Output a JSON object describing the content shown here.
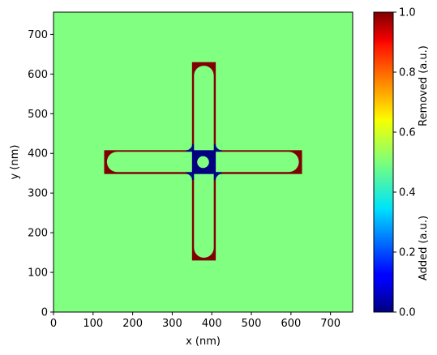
{
  "chart_data": {
    "type": "heatmap",
    "title": "",
    "xlabel": "x (nm)",
    "ylabel": "y (nm)",
    "xlim": [
      0,
      756
    ],
    "ylim": [
      0,
      756
    ],
    "x_ticks": [
      "0",
      "100",
      "200",
      "300",
      "400",
      "500",
      "600",
      "700"
    ],
    "y_ticks": [
      "0",
      "100",
      "200",
      "300",
      "400",
      "500",
      "600",
      "700"
    ],
    "colormap": "jet",
    "background_value": 0.5,
    "colorbar": {
      "range": [
        0.0,
        1.0
      ],
      "ticks": [
        "0.0",
        "0.2",
        "0.4",
        "0.6",
        "0.8",
        "1.0"
      ],
      "label_top": "Removed (a.u.)",
      "label_bottom": "Added (a.u.)"
    },
    "regions": [
      {
        "name": "removed-horizontal-arm",
        "value": 1.0,
        "x": [
          128,
          628
        ],
        "y": [
          348,
          408
        ]
      },
      {
        "name": "removed-vertical-arm",
        "value": 1.0,
        "x": [
          350,
          410
        ],
        "y": [
          130,
          630
        ]
      },
      {
        "name": "added-center-square",
        "value": 0.0,
        "x": [
          350,
          410
        ],
        "y": [
          348,
          408
        ]
      },
      {
        "name": "added-center-corners",
        "value": 0.0,
        "x": [
          335,
          425
        ],
        "y": [
          333,
          423
        ]
      },
      {
        "name": "unchanged-rounded-horizontal-arm",
        "value": 0.5,
        "x": [
          135,
          620
        ],
        "y": [
          353,
          404
        ]
      },
      {
        "name": "unchanged-rounded-vertical-arm",
        "value": 0.5,
        "x": [
          355,
          405
        ],
        "y": [
          137,
          621
        ]
      },
      {
        "name": "unchanged-center-dot",
        "value": 0.5,
        "cx": 378,
        "cy": 378,
        "r": 15
      }
    ]
  }
}
